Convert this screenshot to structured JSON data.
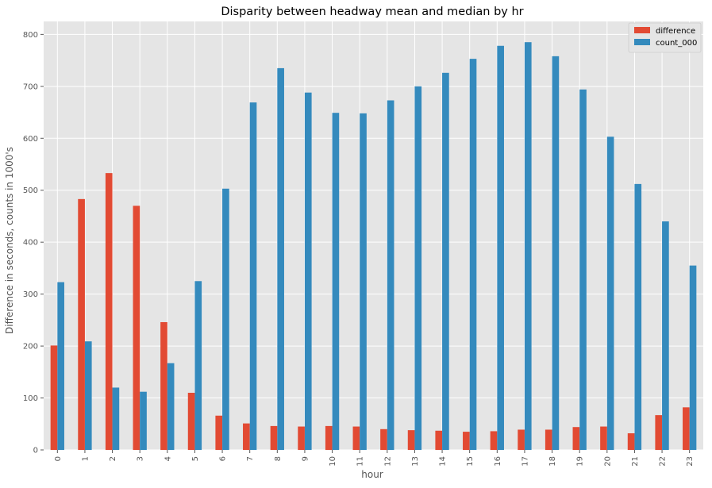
{
  "chart_data": {
    "type": "bar",
    "title": "Disparity between headway mean and median by hr",
    "xlabel": "hour",
    "ylabel": "Difference in seconds, counts in 1000's",
    "ylim": [
      0,
      825
    ],
    "yticks": [
      0,
      100,
      200,
      300,
      400,
      500,
      600,
      700,
      800
    ],
    "grid": true,
    "legend_position": "top-right",
    "categories": [
      "0",
      "1",
      "2",
      "3",
      "4",
      "5",
      "6",
      "7",
      "8",
      "9",
      "10",
      "11",
      "12",
      "13",
      "14",
      "15",
      "16",
      "17",
      "18",
      "19",
      "20",
      "21",
      "22",
      "23"
    ],
    "series": [
      {
        "name": "difference",
        "color": "#E24A33",
        "values": [
          201,
          483,
          533,
          470,
          246,
          110,
          66,
          51,
          46,
          45,
          46,
          45,
          40,
          38,
          37,
          35,
          36,
          39,
          39,
          44,
          45,
          32,
          67,
          82
        ]
      },
      {
        "name": "count_000",
        "color": "#348ABD",
        "values": [
          323,
          209,
          120,
          112,
          167,
          325,
          503,
          669,
          735,
          688,
          649,
          648,
          673,
          700,
          726,
          753,
          778,
          785,
          758,
          694,
          603,
          512,
          440,
          355
        ]
      }
    ]
  }
}
